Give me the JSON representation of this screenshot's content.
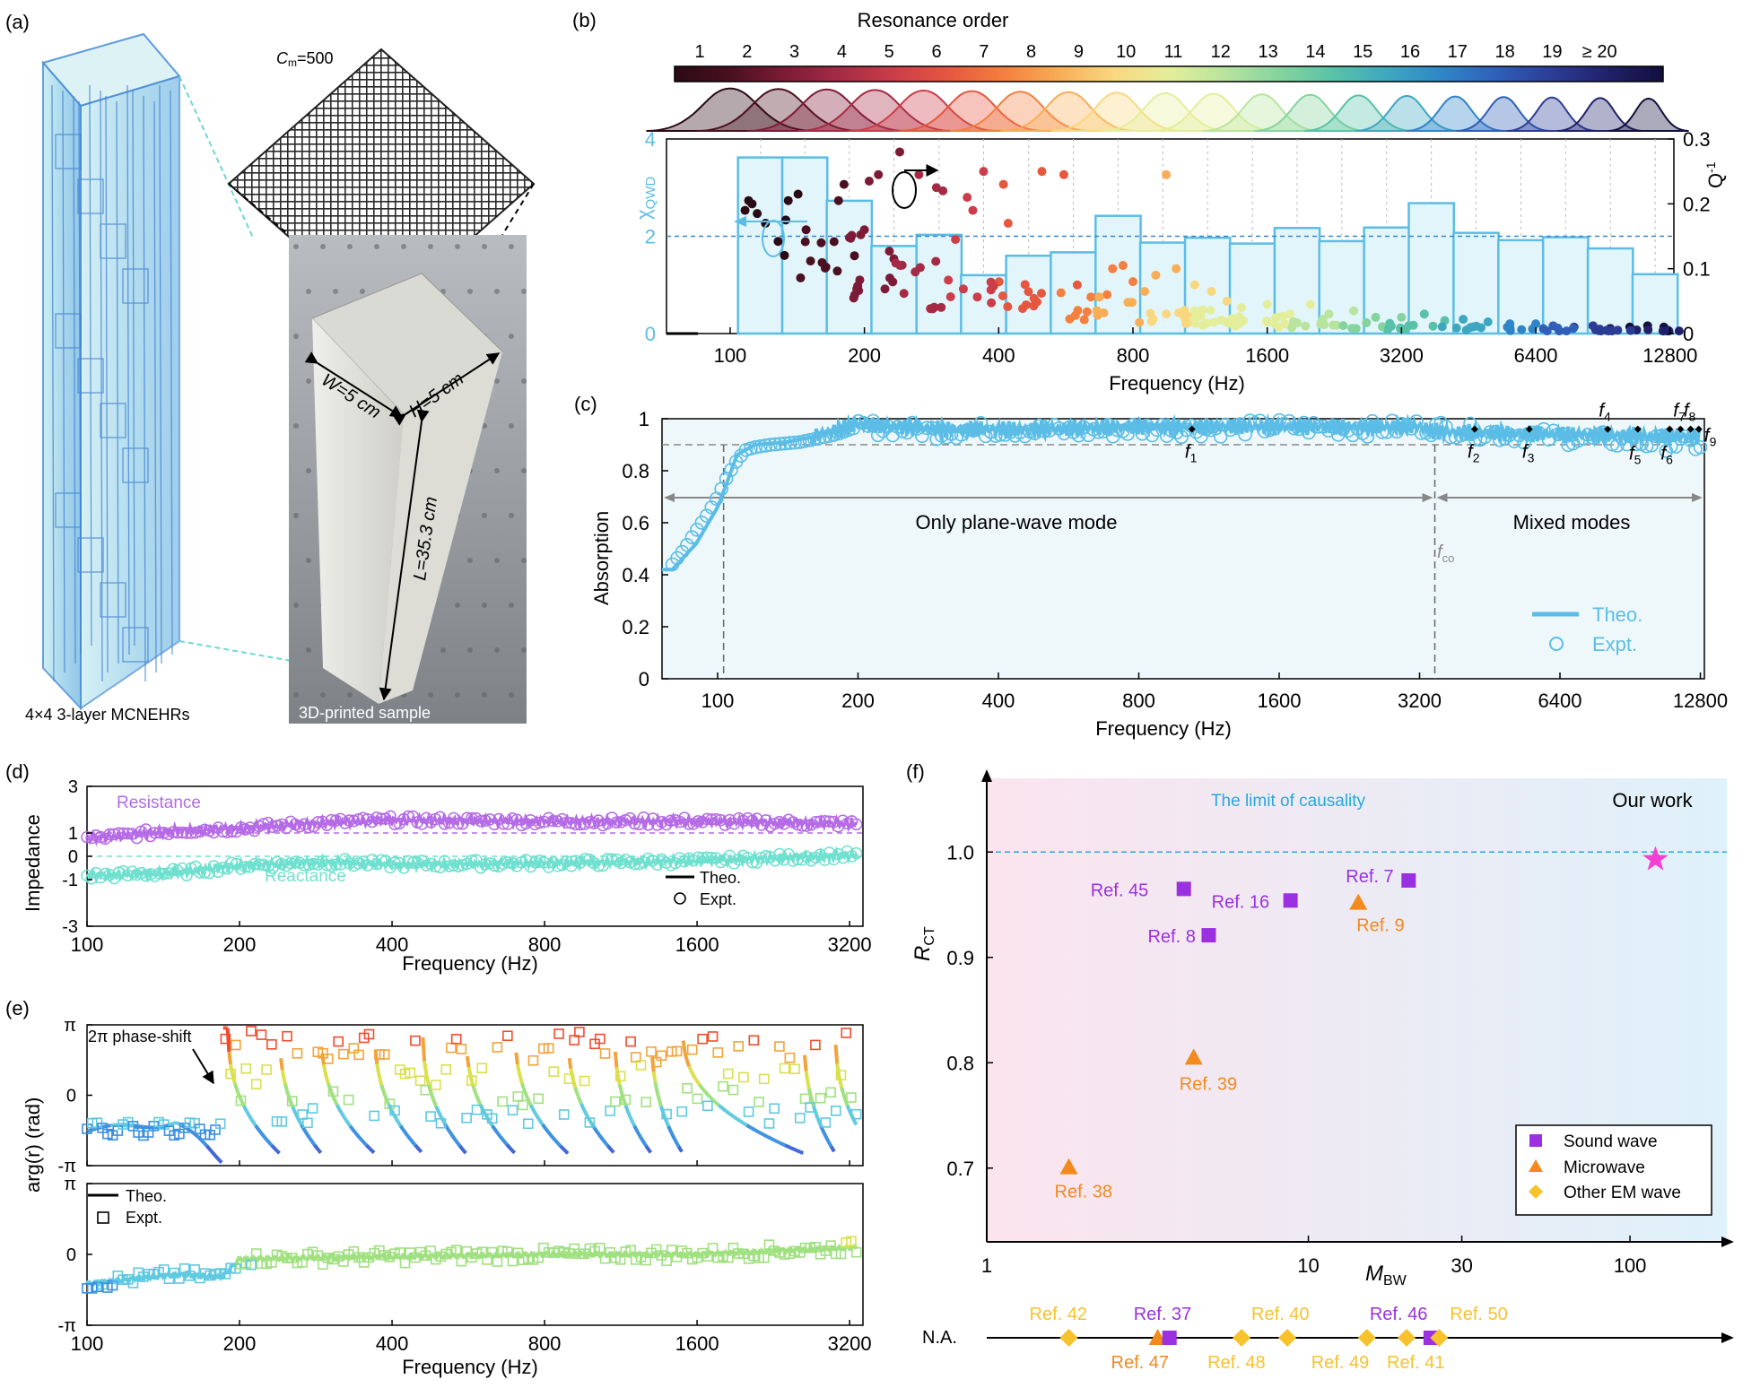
{
  "panels": {
    "a": {
      "letter": "(a)",
      "cm_label": "C",
      "cm_sub": "m",
      "cm_value": "=500",
      "model_caption": "4×4 3-layer MCNEHRs",
      "photo_caption": "3D-printed sample",
      "dim_W": "W=5 cm",
      "dim_H": "H=5 cm",
      "dim_L": "L=35.3 cm"
    },
    "b": {
      "letter": "(b)",
      "res_title": "Resonance order",
      "res_labels": [
        "1",
        "2",
        "3",
        "4",
        "5",
        "6",
        "7",
        "8",
        "9",
        "10",
        "11",
        "12",
        "13",
        "14",
        "15",
        "16",
        "17",
        "18",
        "19",
        "≥ 20"
      ],
      "gradient_colors": [
        "#2a0a14",
        "#4a1020",
        "#7d1b36",
        "#a52b45",
        "#cc3d4a",
        "#e6573f",
        "#f47f3e",
        "#f8ad56",
        "#f9d77f",
        "#e4ee9a",
        "#b8e49d",
        "#85d49e",
        "#58c2a8",
        "#3ea7c0",
        "#2f85c8",
        "#2f5fb8",
        "#2c3c95",
        "#20216a",
        "#120f3c"
      ],
      "ylabel_left": "χ",
      "ylabel_left_sub": "QWD",
      "ylabel_right": "Q",
      "ylabel_right_sup": "-1",
      "xlabel": "Frequency (Hz)"
    },
    "c": {
      "letter": "(c)",
      "ylabel": "Absorption",
      "xlabel": "Frequency (Hz)",
      "region1": "Only plane-wave mode",
      "region2": "Mixed modes",
      "fco": "f",
      "fco_sub": "co",
      "legend_theo": "Theo.",
      "legend_expt": "Expt.",
      "f_labels": [
        "1",
        "2",
        "3",
        "4",
        "5",
        "6",
        "7",
        "8",
        "9"
      ]
    },
    "d": {
      "letter": "(d)",
      "ylabel": "Impedance",
      "xlabel": "Frequency (Hz)",
      "resistance": "Resistance",
      "reactance": "Reactance",
      "legend_theo": "Theo.",
      "legend_expt": "Expt."
    },
    "e": {
      "letter": "(e)",
      "ylabel": "arg(r) (rad)",
      "xlabel": "Frequency (Hz)",
      "annotation": "2π phase-shift",
      "legend_theo": "Theo.",
      "legend_expt": "Expt."
    },
    "f": {
      "letter": "(f)",
      "ylabel": "R",
      "ylabel_sub": "CT",
      "xlabel": "M",
      "xlabel_sub": "BW",
      "limit_label": "The limit of causality",
      "our_work": "Our work",
      "na_label": "N.A.",
      "legend": [
        "Sound wave",
        "Microwave",
        "Other EM wave"
      ]
    }
  },
  "colors": {
    "cyan": "#5bbde6",
    "sound": "#9b30e0",
    "microwave": "#f28a1e",
    "other_em": "#f8c22c",
    "star": "#f53fd2",
    "resistance": "#b56ae6",
    "reactance": "#6fe0cf"
  },
  "chart_data": [
    {
      "panel": "b",
      "type": "bar",
      "xlabel": "Frequency (Hz)",
      "x_scale": "log2",
      "xticks": [
        100,
        200,
        400,
        800,
        1600,
        3200,
        6400,
        12800
      ],
      "ylabel_left": "χQWD",
      "ylim_left": [
        0,
        4
      ],
      "yticks_left": [
        0,
        2,
        4
      ],
      "ylabel_right": "Q-1",
      "ylim_right": [
        0,
        0.3
      ],
      "yticks_right": [
        0,
        0.1,
        0.2,
        0.3
      ],
      "dashed_line_left": 2,
      "bar_centers_hz": [
        117,
        147,
        185,
        233,
        294,
        370,
        467,
        588,
        741,
        933,
        1176,
        1482,
        1867,
        2352,
        2963,
        3733,
        4703,
        5926,
        7466,
        9406,
        11851
      ],
      "bar_values": [
        3.62,
        3.62,
        2.73,
        1.8,
        2.03,
        1.2,
        1.6,
        1.67,
        2.42,
        1.87,
        1.97,
        1.85,
        2.17,
        1.9,
        2.18,
        2.68,
        2.07,
        1.92,
        1.98,
        1.75,
        1.22
      ],
      "scatter_q_inv": {
        "note": "Q-1 per resonance, color = resonance order",
        "points": [
          [
            108,
            0.19,
            1
          ],
          [
            110,
            0.205,
            1
          ],
          [
            112,
            0.2,
            1
          ],
          [
            115,
            0.185,
            1
          ],
          [
            120,
            0.17,
            1
          ],
          [
            135,
            0.205,
            1
          ],
          [
            142,
            0.215,
            1
          ],
          [
            148,
            0.16,
            2
          ],
          [
            160,
            0.14,
            2
          ],
          [
            175,
            0.205,
            2
          ],
          [
            180,
            0.23,
            2
          ],
          [
            190,
            0.12,
            2
          ],
          [
            200,
            0.16,
            3
          ],
          [
            205,
            0.235,
            3
          ],
          [
            215,
            0.245,
            3
          ],
          [
            240,
            0.28,
            3
          ],
          [
            260,
            0.095,
            4
          ],
          [
            265,
            0.245,
            4
          ],
          [
            290,
            0.225,
            4
          ],
          [
            300,
            0.22,
            4
          ],
          [
            320,
            0.145,
            5
          ],
          [
            340,
            0.21,
            5
          ],
          [
            350,
            0.19,
            5
          ],
          [
            370,
            0.25,
            5
          ],
          [
            410,
            0.23,
            6
          ],
          [
            420,
            0.17,
            6
          ],
          [
            500,
            0.25,
            6
          ],
          [
            560,
            0.245,
            6
          ],
          [
            600,
            0.075,
            6
          ],
          [
            700,
            0.06,
            7
          ],
          [
            720,
            0.1,
            7
          ],
          [
            760,
            0.105,
            7
          ],
          [
            800,
            0.08,
            7
          ],
          [
            850,
            0.065,
            8
          ],
          [
            900,
            0.09,
            8
          ],
          [
            950,
            0.245,
            8
          ],
          [
            1000,
            0.1,
            8
          ],
          [
            1100,
            0.075,
            9
          ],
          [
            1200,
            0.065,
            9
          ],
          [
            1300,
            0.05,
            9
          ],
          [
            1400,
            0.04,
            10
          ],
          [
            1600,
            0.045,
            10
          ],
          [
            1800,
            0.03,
            11
          ],
          [
            2000,
            0.045,
            11
          ],
          [
            2200,
            0.03,
            12
          ],
          [
            2500,
            0.035,
            12
          ],
          [
            2800,
            0.025,
            13
          ],
          [
            3200,
            0.025,
            13
          ],
          [
            3600,
            0.03,
            14
          ],
          [
            4000,
            0.02,
            14
          ],
          [
            4400,
            0.022,
            15
          ],
          [
            5000,
            0.018,
            15
          ],
          [
            5600,
            0.015,
            16
          ],
          [
            6400,
            0.015,
            16
          ],
          [
            7000,
            0.012,
            17
          ],
          [
            7800,
            0.01,
            18
          ],
          [
            8600,
            0.012,
            18
          ],
          [
            9400,
            0.008,
            19
          ],
          [
            10400,
            0.01,
            20
          ],
          [
            11400,
            0.012,
            20
          ],
          [
            12400,
            0.01,
            20
          ]
        ]
      }
    },
    {
      "panel": "c",
      "type": "line",
      "xlabel": "Frequency (Hz)",
      "ylabel": "Absorption",
      "x_scale": "log2",
      "xticks": [
        100,
        200,
        400,
        800,
        1600,
        3200,
        6400,
        12800
      ],
      "ylim": [
        0,
        1
      ],
      "yticks": [
        0,
        0.2,
        0.4,
        0.6,
        0.8,
        1
      ],
      "dashed_h": 0.9,
      "dashed_v": [
        103,
        3450
      ],
      "series": [
        {
          "name": "Theo.",
          "x": [
            80,
            90,
            100,
            105,
            110,
            120,
            140,
            160,
            200,
            300,
            500,
            800,
            1600,
            3200,
            3450,
            6400,
            12800
          ],
          "y": [
            0.42,
            0.52,
            0.66,
            0.76,
            0.86,
            0.9,
            0.91,
            0.93,
            0.98,
            0.96,
            0.96,
            0.97,
            0.97,
            0.97,
            0.95,
            0.94,
            0.93
          ]
        },
        {
          "name": "Expt.",
          "x": [
            80,
            85,
            90,
            95,
            100,
            105,
            110,
            115,
            120,
            130,
            150,
            180,
            200,
            250,
            300,
            400,
            600,
            800,
            1200,
            1600,
            2400,
            3200,
            4800,
            6400,
            9600,
            12800
          ],
          "y": [
            0.44,
            0.5,
            0.57,
            0.63,
            0.7,
            0.78,
            0.84,
            0.88,
            0.89,
            0.9,
            0.91,
            0.94,
            0.97,
            0.96,
            0.95,
            0.96,
            0.95,
            0.96,
            0.96,
            0.97,
            0.96,
            0.97,
            0.94,
            0.93,
            0.91,
            0.9
          ]
        }
      ],
      "markers_f": [
        1040,
        4200,
        5500,
        8100,
        9400,
        11000,
        11600,
        12200,
        12700
      ]
    },
    {
      "panel": "d",
      "type": "line",
      "xlabel": "Frequency (Hz)",
      "ylabel": "Impedance",
      "x_scale": "log2",
      "xticks": [
        100,
        200,
        400,
        800,
        1600,
        3200
      ],
      "ylim": [
        -3,
        3
      ],
      "yticks": [
        -3,
        -1,
        0,
        1,
        3
      ],
      "series": [
        {
          "name": "Resistance",
          "x": [
            100,
            150,
            200,
            300,
            400,
            800,
            1600,
            3200
          ],
          "y": [
            0.75,
            1.1,
            1.2,
            1.45,
            1.55,
            1.5,
            1.5,
            1.4
          ]
        },
        {
          "name": "Reactance",
          "x": [
            100,
            150,
            200,
            300,
            400,
            800,
            1600,
            3200
          ],
          "y": [
            -0.85,
            -0.7,
            -0.4,
            -0.25,
            -0.35,
            -0.3,
            -0.2,
            0.05
          ]
        }
      ]
    },
    {
      "panel": "e",
      "type": "line",
      "xlabel": "Frequency (Hz)",
      "ylabel": "arg(r) (rad)",
      "x_scale": "log2",
      "xticks": [
        100,
        200,
        400,
        800,
        1600,
        3200
      ],
      "yticks": [
        "π",
        "0",
        "-π"
      ],
      "subplots": [
        {
          "name": "top",
          "x": [
            100,
            150,
            185,
            190,
            3300
          ],
          "y": [
            -1.6,
            -1.2,
            -2.9,
            3.1,
            0.5
          ],
          "phase_jumps_hz": [
            190,
            240,
            290,
            370,
            460,
            560,
            700,
            890,
            1100,
            1300,
            1500,
            2600,
            3000
          ]
        },
        {
          "name": "bottom",
          "x": [
            100,
            150,
            185,
            200,
            400,
            800,
            1600,
            3200
          ],
          "y": [
            -1.3,
            -0.9,
            -1.0,
            -0.2,
            -0.1,
            0.0,
            0.0,
            0.3
          ]
        }
      ]
    },
    {
      "panel": "f",
      "type": "scatter",
      "xlabel": "MBW",
      "ylabel": "RCT",
      "x_scale": "log",
      "xticks": [
        1,
        10,
        30,
        100
      ],
      "ylim": [
        0.63,
        1.07
      ],
      "yticks": [
        0.7,
        0.8,
        0.9,
        1.0
      ],
      "limit_y": 1.0,
      "points": [
        {
          "label": "Ref. 45",
          "x": 4.1,
          "y": 0.965,
          "kind": "sound"
        },
        {
          "label": "Ref. 16",
          "x": 8.8,
          "y": 0.954,
          "kind": "sound"
        },
        {
          "label": "Ref. 7",
          "x": 20.5,
          "y": 0.973,
          "kind": "sound"
        },
        {
          "label": "Ref. 8",
          "x": 4.9,
          "y": 0.921,
          "kind": "sound"
        },
        {
          "label": "Ref. 9",
          "x": 14.3,
          "y": 0.952,
          "kind": "microwave"
        },
        {
          "label": "Ref. 39",
          "x": 4.4,
          "y": 0.805,
          "kind": "microwave"
        },
        {
          "label": "Ref. 38",
          "x": 1.8,
          "y": 0.701,
          "kind": "microwave"
        },
        {
          "label": "Our work",
          "x": 120,
          "y": 0.993,
          "kind": "ours"
        }
      ],
      "na_points": [
        {
          "label": "Ref. 42",
          "x": 1.8,
          "kind": "other"
        },
        {
          "label": "Ref. 47",
          "x": 3.4,
          "kind": "microwave"
        },
        {
          "label": "Ref. 37",
          "x": 3.7,
          "kind": "sound"
        },
        {
          "label": "Ref. 48",
          "x": 6.2,
          "kind": "other"
        },
        {
          "label": "Ref. 40",
          "x": 8.6,
          "kind": "other"
        },
        {
          "label": "Ref. 49",
          "x": 15.2,
          "kind": "other"
        },
        {
          "label": "Ref. 41",
          "x": 20.2,
          "kind": "other"
        },
        {
          "label": "Ref. 46",
          "x": 24.0,
          "kind": "sound"
        },
        {
          "label": "Ref. 50",
          "x": 25.5,
          "kind": "other"
        }
      ],
      "legend": [
        "Sound wave",
        "Microwave",
        "Other EM wave"
      ]
    }
  ]
}
